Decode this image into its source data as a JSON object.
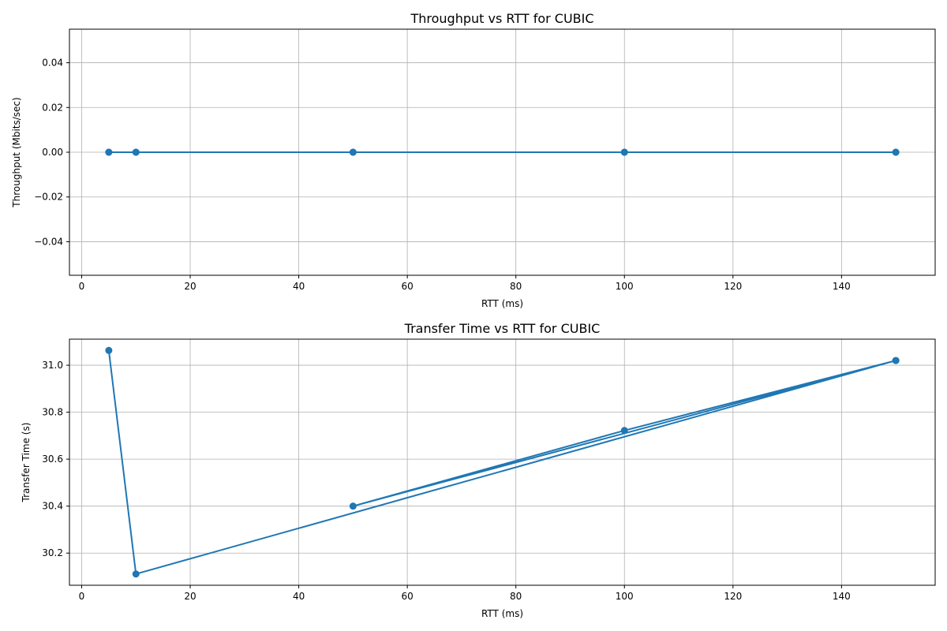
{
  "chart_data": [
    {
      "type": "line",
      "title": "Throughput vs RTT for CUBIC",
      "xlabel": "RTT (ms)",
      "ylabel": "Throughput (Mbits/sec)",
      "xlim": [
        -2.25,
        157.25
      ],
      "ylim": [
        -0.055,
        0.055
      ],
      "xticks": [
        0,
        20,
        40,
        60,
        80,
        100,
        120,
        140
      ],
      "yticks": [
        -0.04,
        -0.02,
        0.0,
        0.02,
        0.04
      ],
      "ytick_labels": [
        "−0.04",
        "−0.02",
        "0.00",
        "0.02",
        "0.04"
      ],
      "grid": true,
      "color": "#1f77b4",
      "series": [
        {
          "x": [
            5,
            10,
            50,
            100,
            150,
            150,
            100,
            50,
            10,
            5
          ],
          "y": [
            0,
            0,
            0,
            0,
            0,
            0,
            0,
            0,
            0,
            0
          ]
        }
      ]
    },
    {
      "type": "line",
      "title": "Transfer Time vs RTT for CUBIC",
      "xlabel": "RTT (ms)",
      "ylabel": "Transfer Time (s)",
      "xlim": [
        -2.25,
        157.25
      ],
      "ylim": [
        30.063,
        31.111
      ],
      "xticks": [
        0,
        20,
        40,
        60,
        80,
        100,
        120,
        140
      ],
      "yticks": [
        30.2,
        30.4,
        30.6,
        30.8,
        31.0
      ],
      "ytick_labels": [
        "30.2",
        "30.4",
        "30.6",
        "30.8",
        "31.0"
      ],
      "grid": true,
      "color": "#1f77b4",
      "series": [
        {
          "x": [
            5,
            10,
            150,
            100,
            50,
            150
          ],
          "y": [
            31.063,
            30.111,
            31.02,
            30.722,
            30.4,
            31.02
          ]
        }
      ]
    }
  ]
}
